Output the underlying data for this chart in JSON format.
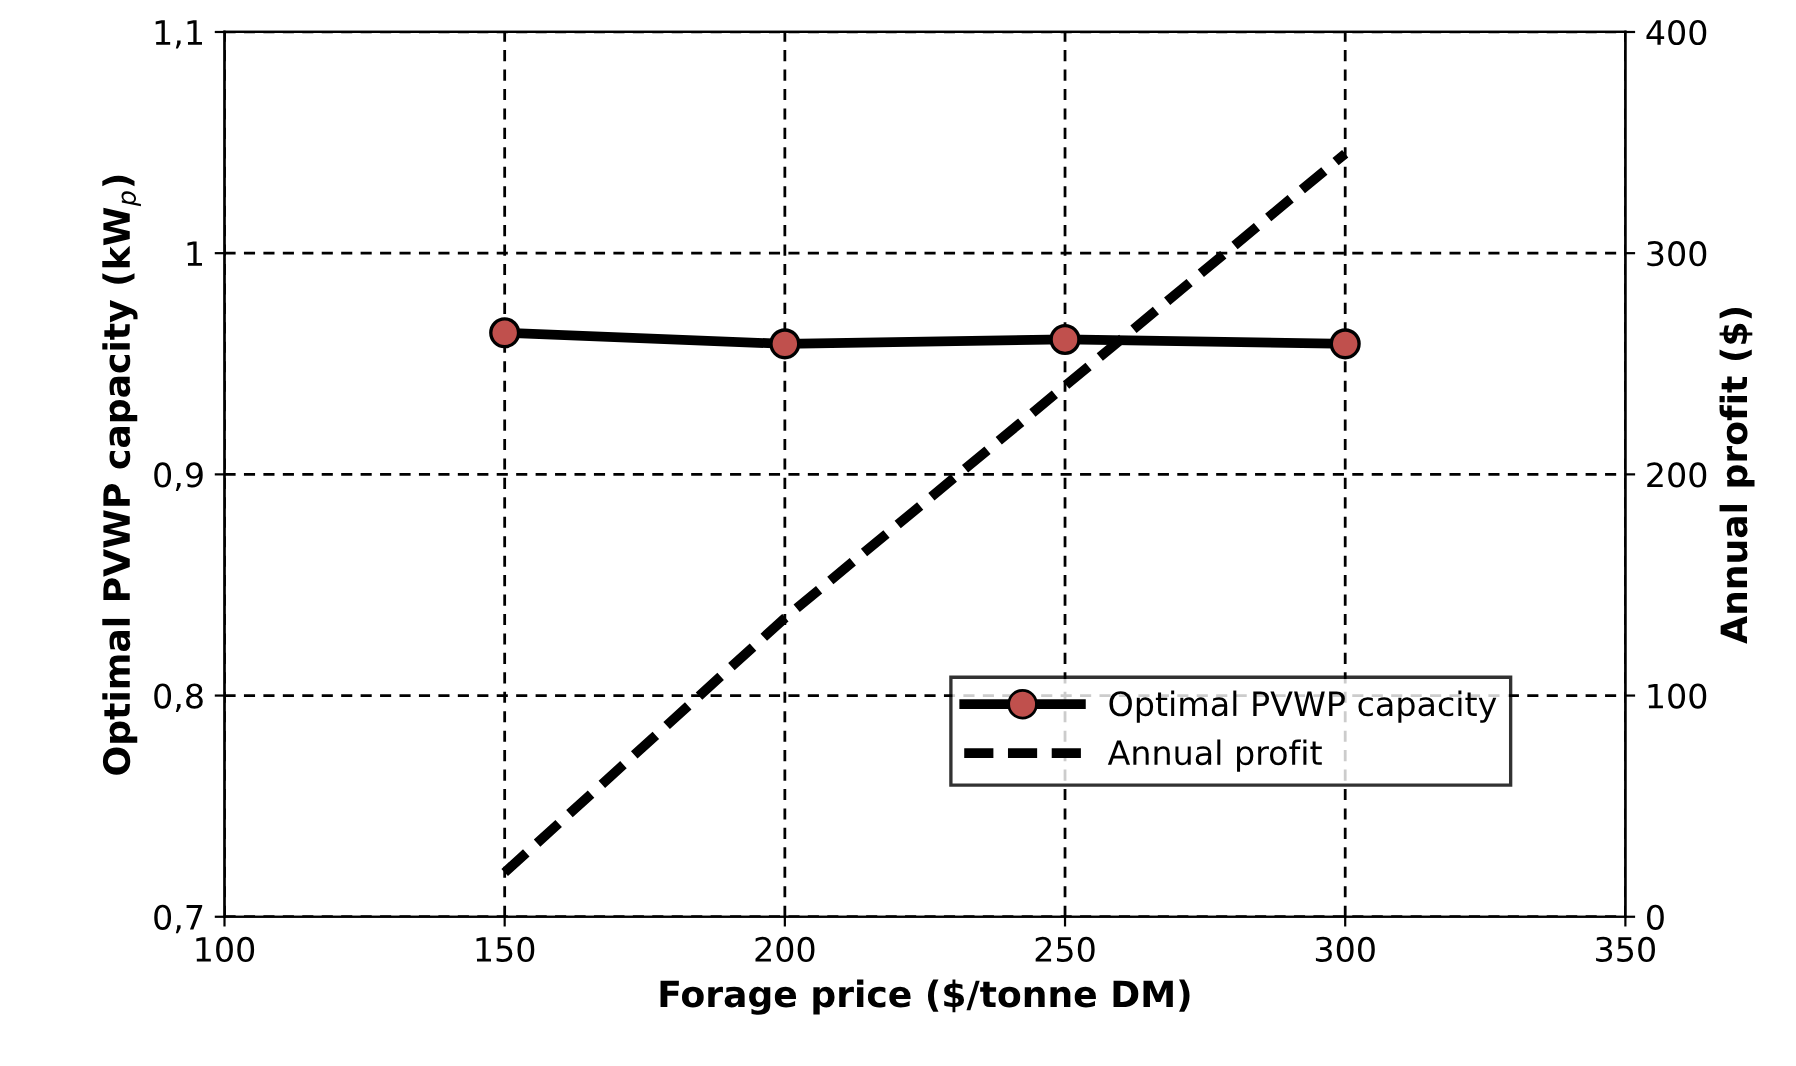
{
  "chart_data": {
    "type": "line",
    "xlabel": "Forage price ($/tonne DM)",
    "ylabel": "Optimal PVWP capacity (kW$_{p}$)",
    "y2label": "Annual profit ($)",
    "x": [
      150,
      200,
      250,
      300
    ],
    "series": [
      {
        "name": "Optimal PVWP capacity",
        "color": "#000000",
        "colors": [
          "#c0504d",
          "#c0504d",
          "#c0504d",
          "#c0504d"
        ],
        "marker": "circle",
        "line_style": "solid",
        "values": [
          0.964,
          0.959,
          0.961,
          0.959
        ]
      },
      {
        "name": "Annual profit",
        "color": "#000000",
        "marker": "none",
        "line_style": "dashed",
        "axis": "y2",
        "values": [
          20,
          135,
          240,
          345
        ]
      }
    ],
    "xlim": [
      100,
      350
    ],
    "xticks": [
      100,
      150,
      200,
      250,
      300,
      350
    ],
    "ylim": [
      0.7,
      1.1
    ],
    "yticks": [
      {
        "value": 0.7,
        "label": "0,7"
      },
      {
        "value": 0.8,
        "label": "0,8"
      },
      {
        "value": 0.9,
        "label": "0,9"
      },
      {
        "value": 1.0,
        "label": "1"
      },
      {
        "value": 1.1,
        "label": "1,1"
      }
    ],
    "y2lim": [
      0,
      400
    ],
    "y2ticks": [
      0,
      100,
      200,
      300,
      400
    ],
    "grid": true,
    "legend": "bottom right"
  }
}
